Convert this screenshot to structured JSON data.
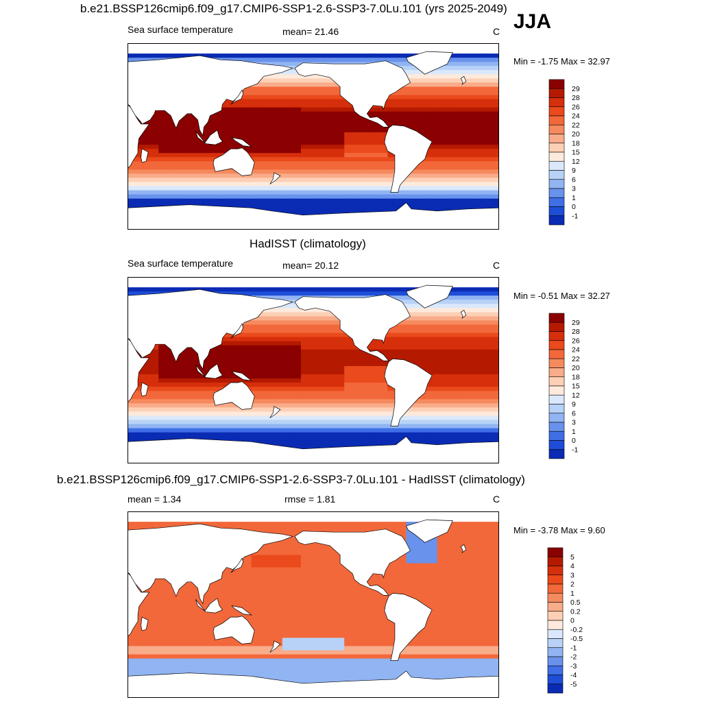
{
  "header": {
    "run_title": "b.e21.BSSP126cmip6.f09_g17.CMIP6-SSP1-2.6-SSP3-7.0Lu.101 (yrs 2025-2049)",
    "season": "JJA"
  },
  "chart_data": [
    {
      "type": "heatmap",
      "title": "b.e21.BSSP126cmip6.f09_g17.CMIP6-SSP1-2.6-SSP3-7.0Lu.101 (yrs 2025-2049)",
      "left_label": "Sea surface temperature",
      "center_label": "mean=  21.46",
      "units": "C",
      "min_max_label": "Min =  -1.75 Max =  32.97",
      "mean": 21.46,
      "min": -1.75,
      "max": 32.97,
      "colorbar": {
        "levels": [
          "29",
          "28",
          "26",
          "24",
          "22",
          "20",
          "18",
          "15",
          "12",
          "9",
          "6",
          "3",
          "1",
          "0",
          "-1"
        ],
        "colors": [
          "#8b0000",
          "#b51a00",
          "#d62f0b",
          "#ea4a1c",
          "#f2683a",
          "#f58a5e",
          "#f9ac8a",
          "#fdd0b6",
          "#fdeadc",
          "#dbe8fb",
          "#b8d2f7",
          "#91b4f2",
          "#6892ec",
          "#3f6ee7",
          "#1e4ed8",
          "#0a2bb3"
        ]
      }
    },
    {
      "type": "heatmap",
      "title": "HadISST (climatology)",
      "left_label": "Sea surface temperature",
      "center_label": "mean=  20.12",
      "units": "C",
      "min_max_label": "Min =  -0.51 Max =  32.27",
      "mean": 20.12,
      "min": -0.51,
      "max": 32.27,
      "colorbar": {
        "levels": [
          "29",
          "28",
          "26",
          "24",
          "22",
          "20",
          "18",
          "15",
          "12",
          "9",
          "6",
          "3",
          "1",
          "0",
          "-1"
        ],
        "colors": [
          "#8b0000",
          "#b51a00",
          "#d62f0b",
          "#ea4a1c",
          "#f2683a",
          "#f58a5e",
          "#f9ac8a",
          "#fdd0b6",
          "#fdeadc",
          "#dbe8fb",
          "#b8d2f7",
          "#91b4f2",
          "#6892ec",
          "#3f6ee7",
          "#1e4ed8",
          "#0a2bb3"
        ]
      }
    },
    {
      "type": "heatmap",
      "title": "b.e21.BSSP126cmip6.f09_g17.CMIP6-SSP1-2.6-SSP3-7.0Lu.101 - HadISST (climatology)",
      "left_label": "mean =   1.34",
      "center_label": "rmse =   1.81",
      "units": "C",
      "min_max_label": "Min =  -3.78 Max =   9.60",
      "mean": 1.34,
      "rmse": 1.81,
      "min": -3.78,
      "max": 9.6,
      "colorbar": {
        "levels": [
          "5",
          "4",
          "3",
          "2",
          "1",
          "0.5",
          "0.2",
          "0",
          "-0.2",
          "-0.5",
          "-1",
          "-2",
          "-3",
          "-4",
          "-5"
        ],
        "colors": [
          "#8b0000",
          "#b51a00",
          "#d62f0b",
          "#ea4a1c",
          "#f2683a",
          "#f58a5e",
          "#f9ac8a",
          "#fdd0b6",
          "#fdeadc",
          "#dbe8fb",
          "#b8d2f7",
          "#91b4f2",
          "#6892ec",
          "#3f6ee7",
          "#1e4ed8",
          "#0a2bb3"
        ]
      }
    }
  ]
}
